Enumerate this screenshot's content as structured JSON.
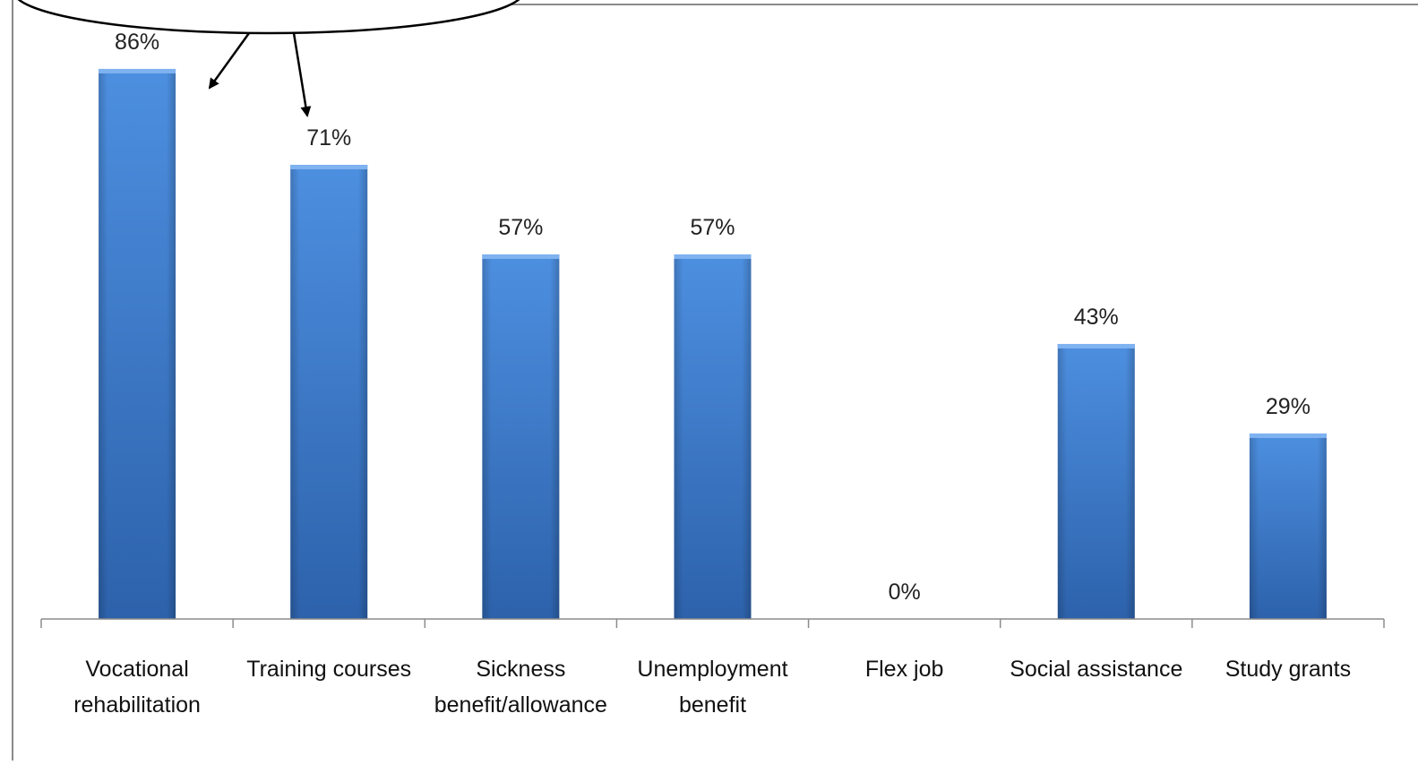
{
  "colors": {
    "bar_top": "#4d8fe0",
    "bar_bottom": "#2d62ab",
    "axis": "#8c8c8c",
    "frame": "#8a8a8a",
    "arrow": "#000000"
  },
  "chart_data": {
    "type": "bar",
    "title": "",
    "xlabel": "",
    "ylabel": "",
    "ylim": [
      0,
      100
    ],
    "grid": false,
    "categories": [
      [
        "Vocational",
        "rehabilitation"
      ],
      [
        "Training courses"
      ],
      [
        "Sickness",
        "benefit/allowance"
      ],
      [
        "Unemployment",
        "benefit"
      ],
      [
        "Flex job"
      ],
      [
        "Social assistance"
      ],
      [
        "Study grants"
      ]
    ],
    "values": [
      86,
      71,
      57,
      57,
      0,
      43,
      29
    ],
    "value_labels": [
      "86%",
      "71%",
      "57%",
      "57%",
      "0%",
      "43%",
      "29%"
    ]
  }
}
